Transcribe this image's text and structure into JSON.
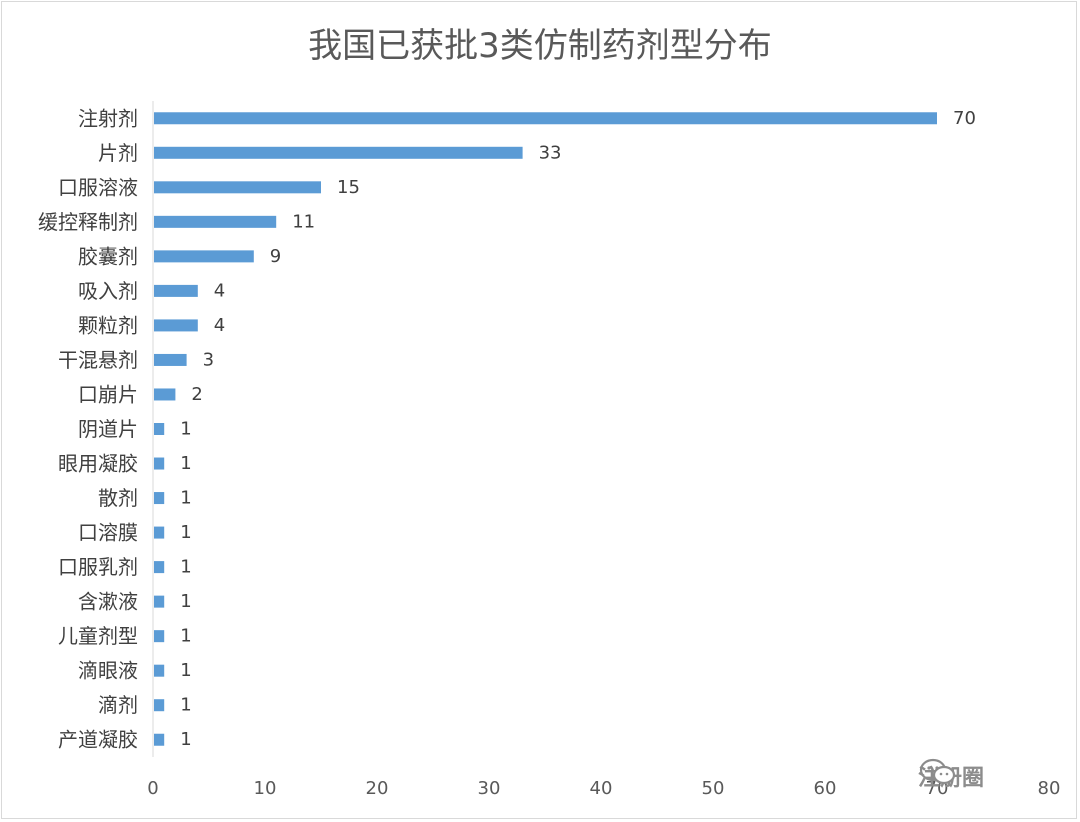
{
  "chart_data": {
    "type": "bar",
    "orientation": "horizontal",
    "title": "我国已获批3类仿制药剂型分布",
    "categories": [
      "注射剂",
      "片剂",
      "口服溶液",
      "缓控释制剂",
      "胶囊剂",
      "吸入剂",
      "颗粒剂",
      "干混悬剂",
      "口崩片",
      "阴道片",
      "眼用凝胶",
      "散剂",
      "口溶膜",
      "口服乳剂",
      "含漱液",
      "儿童剂型",
      "滴眼液",
      "滴剂",
      "产道凝胶"
    ],
    "values": [
      70,
      33,
      15,
      11,
      9,
      4,
      4,
      3,
      2,
      1,
      1,
      1,
      1,
      1,
      1,
      1,
      1,
      1,
      1
    ],
    "xlim": [
      0,
      80
    ],
    "xticks": [
      0,
      10,
      20,
      30,
      40,
      50,
      60,
      70,
      80
    ],
    "xlabel": "",
    "ylabel": "",
    "grid": false,
    "data_labels": true,
    "bar_color": "#5b9bd5"
  },
  "watermark": {
    "text": "注册圈",
    "icon": "wechat-icon"
  }
}
